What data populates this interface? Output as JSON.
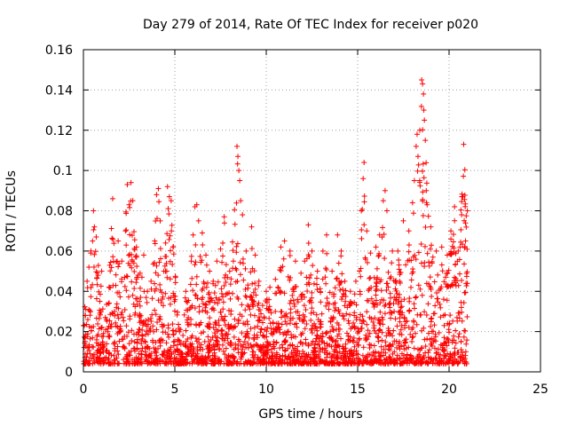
{
  "chart_data": {
    "type": "scatter",
    "title": "Day 279 of 2014, Rate Of TEC Index for receiver p020",
    "xlabel": "GPS time / hours",
    "ylabel": "ROTI / TECUs",
    "xlim": [
      0,
      25
    ],
    "ylim": [
      0,
      0.16
    ],
    "xticks": [
      "0",
      "5",
      "10",
      "15",
      "20",
      "25"
    ],
    "xtick_values": [
      0,
      5,
      10,
      15,
      20,
      25
    ],
    "yticks": [
      "0",
      "0.02",
      "0.04",
      "0.06",
      "0.08",
      "0.1",
      "0.12",
      "0.14",
      "0.16"
    ],
    "ytick_values": [
      0,
      0.02,
      0.04,
      0.06,
      0.08,
      0.1,
      0.12,
      0.14,
      0.16
    ],
    "grid": true,
    "marker": "+",
    "color": "#ff0000",
    "series": [
      {
        "name": "ROTI",
        "points": [
          [
            0.1,
            0.028
          ],
          [
            0.2,
            0.045
          ],
          [
            0.3,
            0.052
          ],
          [
            0.4,
            0.059
          ],
          [
            0.5,
            0.065
          ],
          [
            0.55,
            0.08
          ],
          [
            0.6,
            0.072
          ],
          [
            0.7,
            0.067
          ],
          [
            0.8,
            0.048
          ],
          [
            0.9,
            0.035
          ],
          [
            1.0,
            0.05
          ],
          [
            1.2,
            0.027
          ],
          [
            1.4,
            0.042
          ],
          [
            1.6,
            0.086
          ],
          [
            1.7,
            0.03
          ],
          [
            1.9,
            0.065
          ],
          [
            2.1,
            0.055
          ],
          [
            2.3,
            0.07
          ],
          [
            2.4,
            0.093
          ],
          [
            2.5,
            0.083
          ],
          [
            2.6,
            0.094
          ],
          [
            2.7,
            0.085
          ],
          [
            2.9,
            0.062
          ],
          [
            3.1,
            0.049
          ],
          [
            3.3,
            0.058
          ],
          [
            3.5,
            0.04
          ],
          [
            3.7,
            0.045
          ],
          [
            3.9,
            0.065
          ],
          [
            4.0,
            0.088
          ],
          [
            4.1,
            0.091
          ],
          [
            4.2,
            0.075
          ],
          [
            4.4,
            0.05
          ],
          [
            4.6,
            0.092
          ],
          [
            4.7,
            0.087
          ],
          [
            4.8,
            0.085
          ],
          [
            4.9,
            0.062
          ],
          [
            5.3,
            0.021
          ],
          [
            5.6,
            0.04
          ],
          [
            5.9,
            0.055
          ],
          [
            6.0,
            0.068
          ],
          [
            6.1,
            0.082
          ],
          [
            6.2,
            0.083
          ],
          [
            6.3,
            0.075
          ],
          [
            6.5,
            0.069
          ],
          [
            6.7,
            0.058
          ],
          [
            6.9,
            0.05
          ],
          [
            7.1,
            0.045
          ],
          [
            7.3,
            0.055
          ],
          [
            7.5,
            0.061
          ],
          [
            7.7,
            0.077
          ],
          [
            8.0,
            0.05
          ],
          [
            8.2,
            0.055
          ],
          [
            8.4,
            0.112
          ],
          [
            8.45,
            0.107
          ],
          [
            8.5,
            0.1
          ],
          [
            8.55,
            0.095
          ],
          [
            8.6,
            0.085
          ],
          [
            8.7,
            0.078
          ],
          [
            8.9,
            0.06
          ],
          [
            9.2,
            0.072
          ],
          [
            9.4,
            0.058
          ],
          [
            9.6,
            0.045
          ],
          [
            9.8,
            0.033
          ],
          [
            10.0,
            0.04
          ],
          [
            10.2,
            0.042
          ],
          [
            10.5,
            0.046
          ],
          [
            10.8,
            0.062
          ],
          [
            11.0,
            0.065
          ],
          [
            11.3,
            0.06
          ],
          [
            11.6,
            0.055
          ],
          [
            11.9,
            0.049
          ],
          [
            12.1,
            0.055
          ],
          [
            12.3,
            0.073
          ],
          [
            12.5,
            0.06
          ],
          [
            12.8,
            0.05
          ],
          [
            13.1,
            0.06
          ],
          [
            13.3,
            0.068
          ],
          [
            13.6,
            0.05
          ],
          [
            13.9,
            0.068
          ],
          [
            14.1,
            0.06
          ],
          [
            14.3,
            0.045
          ],
          [
            14.6,
            0.04
          ],
          [
            14.9,
            0.045
          ],
          [
            15.1,
            0.05
          ],
          [
            15.2,
            0.08
          ],
          [
            15.3,
            0.096
          ],
          [
            15.35,
            0.104
          ],
          [
            15.5,
            0.07
          ],
          [
            15.7,
            0.059
          ],
          [
            16.0,
            0.062
          ],
          [
            16.2,
            0.068
          ],
          [
            16.4,
            0.085
          ],
          [
            16.5,
            0.09
          ],
          [
            16.6,
            0.08
          ],
          [
            16.9,
            0.06
          ],
          [
            17.2,
            0.06
          ],
          [
            17.5,
            0.075
          ],
          [
            17.8,
            0.07
          ],
          [
            18.0,
            0.084
          ],
          [
            18.1,
            0.095
          ],
          [
            18.2,
            0.112
          ],
          [
            18.25,
            0.118
          ],
          [
            18.3,
            0.107
          ],
          [
            18.4,
            0.12
          ],
          [
            18.5,
            0.145
          ],
          [
            18.55,
            0.143
          ],
          [
            18.6,
            0.138
          ],
          [
            18.62,
            0.13
          ],
          [
            18.65,
            0.125
          ],
          [
            18.7,
            0.115
          ],
          [
            18.75,
            0.09
          ],
          [
            18.8,
            0.083
          ],
          [
            19.0,
            0.072
          ],
          [
            19.3,
            0.06
          ],
          [
            19.6,
            0.062
          ],
          [
            19.9,
            0.058
          ],
          [
            20.1,
            0.07
          ],
          [
            20.3,
            0.082
          ],
          [
            20.5,
            0.06
          ],
          [
            20.6,
            0.062
          ],
          [
            20.7,
            0.087
          ],
          [
            20.75,
            0.087
          ],
          [
            20.8,
            0.113
          ],
          [
            20.9,
            0.065
          ],
          [
            21.0,
            0.08
          ]
        ]
      }
    ]
  }
}
